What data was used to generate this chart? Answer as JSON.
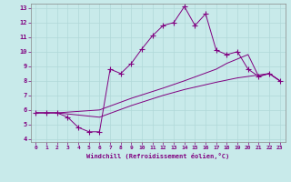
{
  "xlabel": "Windchill (Refroidissement éolien,°C)",
  "line_color": "#800080",
  "bg_color": "#c8eaea",
  "grid_color": "#b0d8d8",
  "xlim": [
    -0.5,
    23.5
  ],
  "ylim": [
    3.8,
    13.3
  ],
  "xticks": [
    0,
    1,
    2,
    3,
    4,
    5,
    6,
    7,
    8,
    9,
    10,
    11,
    12,
    13,
    14,
    15,
    16,
    17,
    18,
    19,
    20,
    21,
    22,
    23
  ],
  "yticks": [
    4,
    5,
    6,
    7,
    8,
    9,
    10,
    11,
    12,
    13
  ],
  "curve1_x": [
    0,
    1,
    2,
    3,
    4,
    5,
    6,
    7,
    8,
    9,
    10,
    11,
    12,
    13,
    14,
    15,
    16,
    17,
    18,
    19,
    20,
    21,
    22,
    23
  ],
  "curve1_y": [
    5.8,
    5.8,
    5.8,
    5.5,
    4.8,
    4.5,
    4.5,
    8.8,
    8.5,
    9.2,
    10.2,
    11.1,
    11.8,
    12.0,
    13.1,
    11.8,
    12.6,
    10.1,
    9.8,
    10.0,
    8.8,
    8.3,
    8.5,
    8.0
  ],
  "curve2_x": [
    0,
    2,
    6,
    9,
    12,
    14,
    17,
    18,
    20,
    21,
    22,
    23
  ],
  "curve2_y": [
    5.8,
    5.8,
    6.0,
    6.8,
    7.5,
    8.0,
    8.8,
    9.2,
    9.8,
    8.3,
    8.5,
    8.0
  ],
  "curve3_x": [
    0,
    2,
    6,
    9,
    12,
    14,
    17,
    19,
    22,
    23
  ],
  "curve3_y": [
    5.8,
    5.8,
    5.5,
    6.3,
    7.0,
    7.4,
    7.9,
    8.2,
    8.5,
    8.0
  ]
}
